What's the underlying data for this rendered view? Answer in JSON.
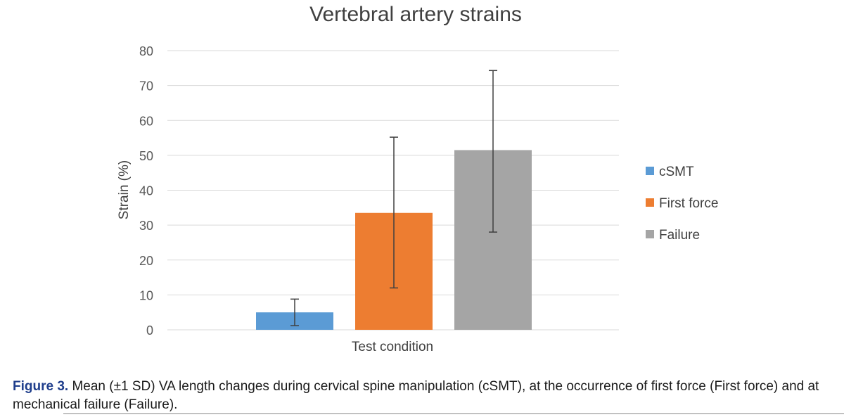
{
  "chart_data": {
    "type": "bar",
    "title": "Vertebral artery strains",
    "xlabel": "Test condition",
    "ylabel": "Strain (%)",
    "ylim": [
      0,
      80
    ],
    "yticks": [
      0,
      10,
      20,
      30,
      40,
      50,
      60,
      70,
      80
    ],
    "grid": true,
    "legend_position": "right",
    "series": [
      {
        "name": "cSMT",
        "value": 5,
        "error_low": 1.2,
        "error_high": 8.8,
        "color": "#5b9bd5"
      },
      {
        "name": "First force",
        "value": 33.5,
        "error_low": 12,
        "error_high": 55.2,
        "color": "#ed7d31"
      },
      {
        "name": "Failure",
        "value": 51.5,
        "error_low": 28,
        "error_high": 74.3,
        "color": "#a5a5a5"
      }
    ]
  },
  "caption": {
    "label": "Figure 3.",
    "text": "Mean (±1 SD) VA length changes during cervical spine manipulation (cSMT), at the occurrence of first force (First force) and at mechanical failure (Failure)."
  }
}
